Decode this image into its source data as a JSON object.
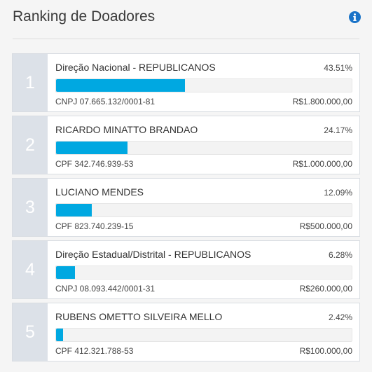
{
  "header": {
    "title": "Ranking de Doadores",
    "info_icon": "info-icon",
    "accent_color": "#1a73c8"
  },
  "bar_color": "#00a8e1",
  "donors": [
    {
      "rank": "1",
      "name": "Direção Nacional - REPUBLICANOS",
      "percent": "43.51%",
      "share": 43.51,
      "document": "CNPJ 07.665.132/0001-81",
      "amount": "R$1.800.000,00"
    },
    {
      "rank": "2",
      "name": "RICARDO MINATTO BRANDAO",
      "percent": "24.17%",
      "share": 24.17,
      "document": "CPF 342.746.939-53",
      "amount": "R$1.000.000,00"
    },
    {
      "rank": "3",
      "name": "LUCIANO MENDES",
      "percent": "12.09%",
      "share": 12.09,
      "document": "CPF 823.740.239-15",
      "amount": "R$500.000,00"
    },
    {
      "rank": "4",
      "name": "Direção Estadual/Distrital - REPUBLICANOS",
      "percent": "6.28%",
      "share": 6.28,
      "document": "CNPJ 08.093.442/0001-31",
      "amount": "R$260.000,00"
    },
    {
      "rank": "5",
      "name": "RUBENS OMETTO SILVEIRA MELLO",
      "percent": "2.42%",
      "share": 2.42,
      "document": "CPF 412.321.788-53",
      "amount": "R$100.000,00"
    }
  ]
}
